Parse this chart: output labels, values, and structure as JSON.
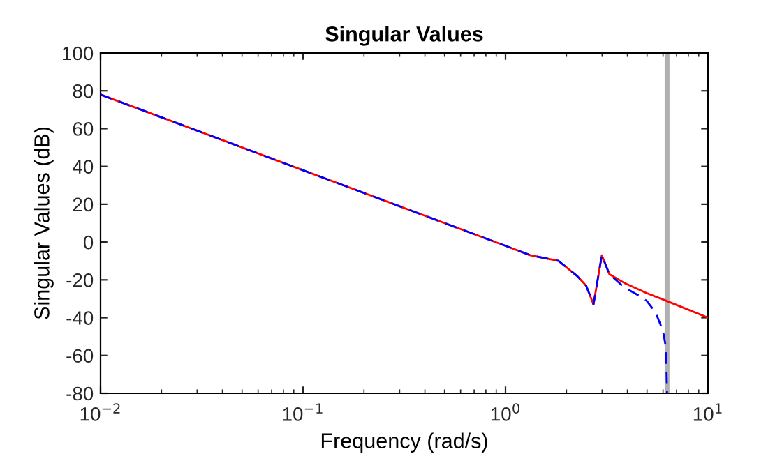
{
  "chart_data": {
    "type": "line",
    "title": "Singular Values",
    "xlabel": "Frequency (rad/s)",
    "ylabel": "Singular Values (dB)",
    "log": "x",
    "grid": false,
    "marker": "none",
    "xlim": [
      0.01,
      10
    ],
    "xticks": [
      {
        "value": 0.01,
        "label": "10$^{−2}$"
      },
      {
        "value": 0.1,
        "label": "10$^{−1}$"
      },
      {
        "value": 1,
        "label": "10$^{0}$"
      },
      {
        "value": 10,
        "label": "10$^{1}$"
      }
    ],
    "ylim": [
      -80,
      100
    ],
    "yticks": [
      -80,
      -60,
      -40,
      -20,
      0,
      20,
      40,
      60,
      80,
      100
    ],
    "ref_lines": [
      {
        "axis": "x",
        "value": 6.28,
        "label": null,
        "color": "#b0b0b0",
        "line_style": "solid"
      }
    ],
    "series": [
      {
        "color": "#ff0000",
        "line_style": "solid",
        "x": [
          0.01,
          0.1,
          1,
          1.33,
          1.83,
          2.26,
          2.5,
          2.72,
          2.99,
          3.26,
          3.86,
          4.97,
          6.2,
          10
        ],
        "values": [
          78,
          38,
          -2,
          -7,
          -10,
          -18,
          -23,
          -33,
          -7,
          -17,
          -21.6,
          -27,
          -31,
          -40
        ]
      },
      {
        "color": "#0000ff",
        "line_style": "dashed",
        "x": [
          0.01,
          0.1,
          1,
          1.33,
          1.83,
          2.26,
          2.5,
          2.72,
          2.99,
          3.26,
          3.86,
          4.5,
          4.97,
          5.5,
          6.0,
          6.2,
          6.28
        ],
        "values": [
          78,
          38,
          -2,
          -7,
          -10,
          -18,
          -23,
          -33,
          -7,
          -17,
          -24,
          -28,
          -31,
          -37,
          -47,
          -56,
          -80
        ]
      }
    ]
  }
}
